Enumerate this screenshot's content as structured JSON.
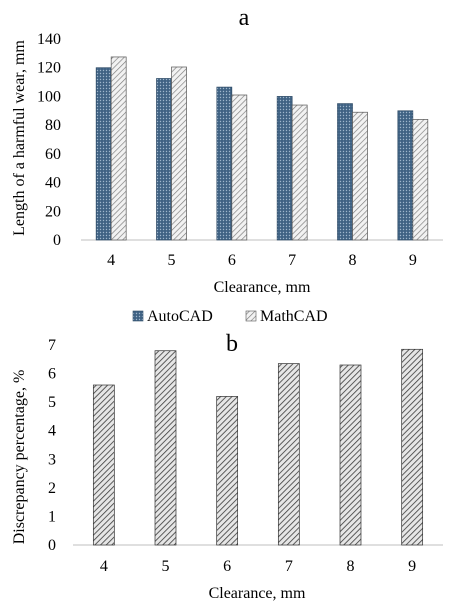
{
  "chart_data": [
    {
      "type": "bar",
      "panel_label": "a",
      "title": "",
      "xlabel": "Clearance, mm",
      "ylabel": "Length of a harmful wear, mm",
      "categories": [
        "4",
        "5",
        "6",
        "7",
        "8",
        "9"
      ],
      "series": [
        {
          "name": "AutoCAD",
          "values": [
            120,
            112.5,
            106.5,
            100,
            95,
            90
          ],
          "color": "#3f6283",
          "pattern": "dotted"
        },
        {
          "name": "MathCAD",
          "values": [
            127.5,
            120.5,
            101,
            94,
            89,
            84
          ],
          "color": "#d9d9d9",
          "pattern": "hatched"
        }
      ],
      "ylim": [
        0,
        140
      ],
      "yticks": [
        "0",
        "20",
        "40",
        "60",
        "80",
        "100",
        "120",
        "140"
      ],
      "grid": false,
      "legend_position": "bottom"
    },
    {
      "type": "bar",
      "panel_label": "b",
      "title": "",
      "xlabel": "Clearance, mm",
      "ylabel": "Discrepancy percentage, %",
      "categories": [
        "4",
        "5",
        "6",
        "7",
        "8",
        "9"
      ],
      "series": [
        {
          "values": [
            5.6,
            6.8,
            5.2,
            6.35,
            6.3,
            6.85
          ],
          "color": "#555555",
          "pattern": "hatched"
        }
      ],
      "ylim": [
        0,
        7
      ],
      "yticks": [
        "0",
        "1",
        "2",
        "3",
        "4",
        "5",
        "6",
        "7"
      ],
      "grid": false,
      "legend_position": "none"
    }
  ]
}
